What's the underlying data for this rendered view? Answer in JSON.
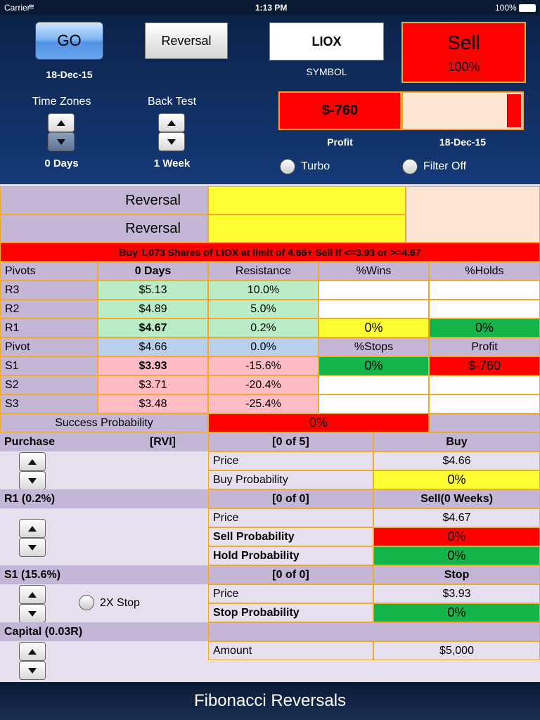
{
  "status": {
    "carrier": "Carrier",
    "time": "1:13 PM",
    "battery": "100%"
  },
  "header": {
    "go_label": "GO",
    "go_date": "18-Dec-15",
    "reversal_label": "Reversal",
    "symbol_value": "LIOX",
    "symbol_label": "SYMBOL",
    "signal": "Sell",
    "signal_pct": "100%",
    "time_zones_label": "Time Zones",
    "time_zones_value": "0 Days",
    "back_test_label": "Back Test",
    "back_test_value": "1 Week",
    "profit_value": "$-760",
    "profit_label": "Profit",
    "progress_date": "18-Dec-15",
    "progress_fraction": 0.12,
    "turbo_label": "Turbo",
    "filter_label": "Filter Off"
  },
  "reversal_rows": [
    "Reversal",
    "Reversal"
  ],
  "order_text": "Buy 1,073 Shares of LIOX at limit of 4.66+ Sell if <=3.93 or >=4.67",
  "pivots": {
    "headers": [
      "Pivots",
      "0 Days",
      "Resistance",
      "%Wins",
      "%Holds"
    ],
    "rows": [
      {
        "name": "R3",
        "price": "$5.13",
        "pct": "10.0%"
      },
      {
        "name": "R2",
        "price": "$4.89",
        "pct": "5.0%"
      },
      {
        "name": "R1",
        "price": "$4.67",
        "pct": "0.2%",
        "c4": "0%",
        "c5": "0%"
      },
      {
        "name": "Pivot",
        "price": "$4.66",
        "pct": "0.0%",
        "c4": "%Stops",
        "c5": "Profit"
      },
      {
        "name": "S1",
        "price": "$3.93",
        "pct": "-15.6%",
        "c4": "0%",
        "c5": "$-760"
      },
      {
        "name": "S2",
        "price": "$3.71",
        "pct": "-20.4%"
      },
      {
        "name": "S3",
        "price": "$3.48",
        "pct": "-25.4%"
      }
    ]
  },
  "success": {
    "label": "Success Probability",
    "value": "0%"
  },
  "purchase": {
    "label": "Purchase",
    "tag": "[RVI]",
    "count": "[0 of 5]",
    "head": "Buy",
    "price_label": "Price",
    "price": "$4.66",
    "prob_label": "Buy Probability",
    "prob": "0%"
  },
  "r1": {
    "label": "R1 (0.2%)",
    "count": "[0 of 0]",
    "head": "Sell(0 Weeks)",
    "price_label": "Price",
    "price": "$4.67",
    "sell_label": "Sell Probability",
    "sell": "0%",
    "hold_label": "Hold Probability",
    "hold": "0%"
  },
  "s1": {
    "label": "S1 (15.6%)",
    "count": "[0 of 0]",
    "head": "Stop",
    "stop2x": "2X Stop",
    "price_label": "Price",
    "price": "$3.93",
    "prob_label": "Stop Probability",
    "prob": "0%"
  },
  "capital": {
    "label": "Capital (0.03R)",
    "amount_label": "Amount",
    "amount": "$5,000"
  },
  "footer": {
    "title": "Fibonacci Reversals"
  },
  "colors": {
    "sell": "#ff0000",
    "buy_prob": "#ffff33",
    "hold": "#13b54a",
    "header_bg": "#0d2550"
  }
}
